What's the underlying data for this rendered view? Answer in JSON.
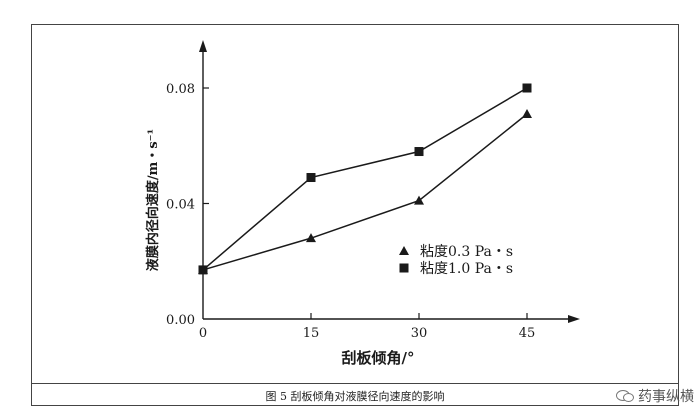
{
  "chart_data": {
    "type": "line",
    "title": "",
    "xlabel": "刮板倾角/°",
    "ylabel": "液膜内径向速度/m・s⁻¹",
    "x": [
      0,
      15,
      30,
      45
    ],
    "xlim": [
      0,
      50
    ],
    "ylim": [
      0,
      0.096
    ],
    "x_ticks": [
      "0",
      "15",
      "30",
      "45"
    ],
    "y_ticks": [
      "0.00",
      "0.04",
      "0.08"
    ],
    "y_tick_values": [
      0,
      0.04,
      0.08
    ],
    "legend_position": "lower-right",
    "grid": false,
    "series": [
      {
        "name": "粘度0.3 Pa・s",
        "marker": "triangle",
        "values": [
          0.017,
          0.028,
          0.041,
          0.071
        ]
      },
      {
        "name": "粘度1.0 Pa・s",
        "marker": "square",
        "values": [
          0.017,
          0.049,
          0.058,
          0.08
        ]
      }
    ]
  },
  "caption": "图 5 刮板倾角对液膜径向速度的影响",
  "watermark": "药事纵横",
  "colors": {
    "ink": "#1a1a1a",
    "frame": "#444444"
  }
}
